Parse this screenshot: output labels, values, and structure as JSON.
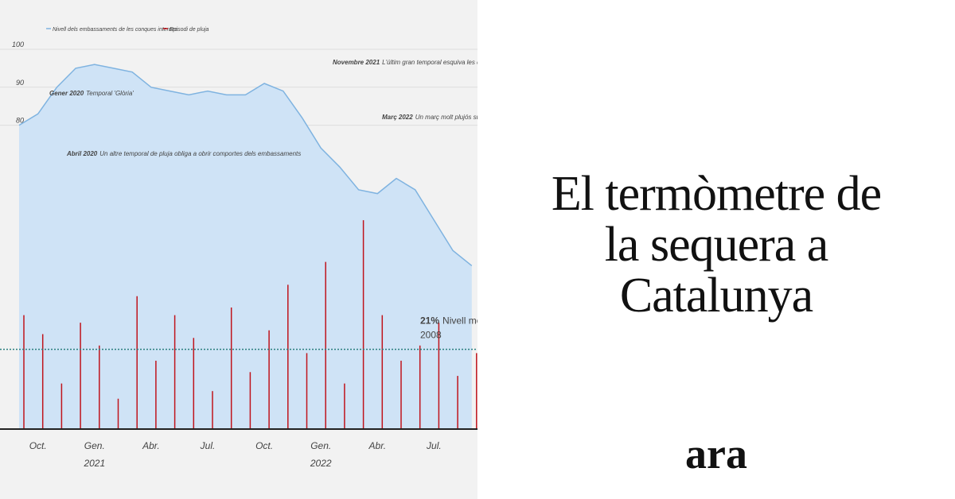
{
  "headline": "El termòmetre de la sequera a Catalunya",
  "logo": "ara",
  "chart_data": {
    "type": "area",
    "categories": [
      null,
      "Oct.",
      null,
      null,
      "Gen. 2021",
      null,
      null,
      "Abr.",
      null,
      null,
      "Jul.",
      null,
      null,
      "Oct.",
      null,
      null,
      "Gen. 2022",
      null,
      null,
      "Abr.",
      null,
      null,
      "Jul.",
      null,
      null
    ],
    "series": [
      {
        "name": "Nivell dels embassaments de les conques internes",
        "color": "#7fb3e0",
        "values": [
          80,
          83,
          90,
          95,
          96,
          95,
          94,
          90,
          89,
          88,
          89,
          88,
          88,
          91,
          89,
          82,
          74,
          69,
          63,
          62,
          66,
          63,
          55,
          47,
          43
        ]
      },
      {
        "name": "Episodi de pluja",
        "color": "#c0141c",
        "values": [
          30,
          25,
          12,
          28,
          22,
          8,
          35,
          18,
          30,
          24,
          10,
          32,
          15,
          26,
          38,
          20,
          44,
          12,
          55,
          30,
          18,
          22,
          28,
          14,
          20
        ]
      }
    ],
    "ylim": [
      0,
      100
    ],
    "yticks": [
      80,
      90,
      100
    ],
    "reference": {
      "value": 21,
      "label_bold": "21%",
      "label": "Nivell més bai",
      "label2": "2008"
    },
    "annotations": [
      {
        "bold": "Gener 2020",
        "text": "Temporal 'Glòria'"
      },
      {
        "bold": "Abril 2020",
        "text": "Un altre temporal de pluja obliga a obrir comportes dels embassaments"
      },
      {
        "bold": "Novembre 2021",
        "text": "L'últim gran temporal esquiva les capçaleres dels rius"
      },
      {
        "bold": "Març 2022",
        "text": "Un març molt plujós suposa l'últim acumulació de reserves"
      }
    ]
  }
}
